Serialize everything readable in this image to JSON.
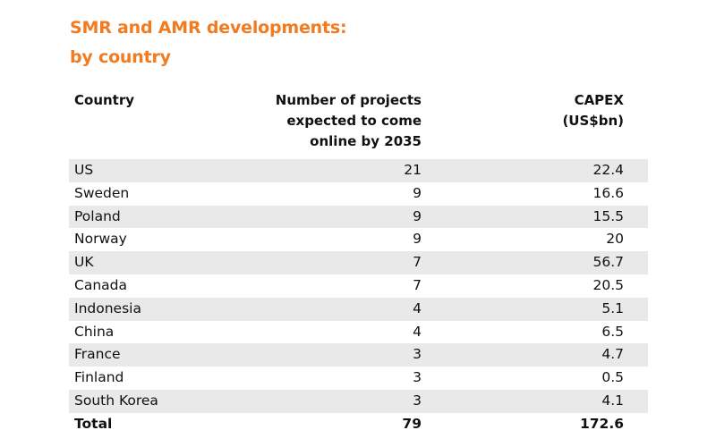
{
  "title_line1": "SMR and AMR developments:",
  "title_line2": "by country",
  "accent_color": "#f27b20",
  "chart_data": {
    "type": "table",
    "columns": [
      "Country",
      "Number of projects expected to come online by 2035",
      "CAPEX (US$bn)"
    ],
    "header": {
      "country": "Country",
      "projects_lines": [
        "Number of projects",
        "expected to come",
        "online by 2035"
      ],
      "capex_lines": [
        "CAPEX",
        "(US$bn)"
      ]
    },
    "rows": [
      {
        "country": "US",
        "projects": "21",
        "capex": "22.4"
      },
      {
        "country": "Sweden",
        "projects": "9",
        "capex": "16.6"
      },
      {
        "country": "Poland",
        "projects": "9",
        "capex": "15.5"
      },
      {
        "country": "Norway",
        "projects": "9",
        "capex": "20"
      },
      {
        "country": "UK",
        "projects": "7",
        "capex": "56.7"
      },
      {
        "country": "Canada",
        "projects": "7",
        "capex": "20.5"
      },
      {
        "country": "Indonesia",
        "projects": "4",
        "capex": "5.1"
      },
      {
        "country": "China",
        "projects": "4",
        "capex": "6.5"
      },
      {
        "country": "France",
        "projects": "3",
        "capex": "4.7"
      },
      {
        "country": "Finland",
        "projects": "3",
        "capex": "0.5"
      },
      {
        "country": "South Korea",
        "projects": "3",
        "capex": "4.1"
      }
    ],
    "total": {
      "country": "Total",
      "projects": "79",
      "capex": "172.6"
    }
  }
}
